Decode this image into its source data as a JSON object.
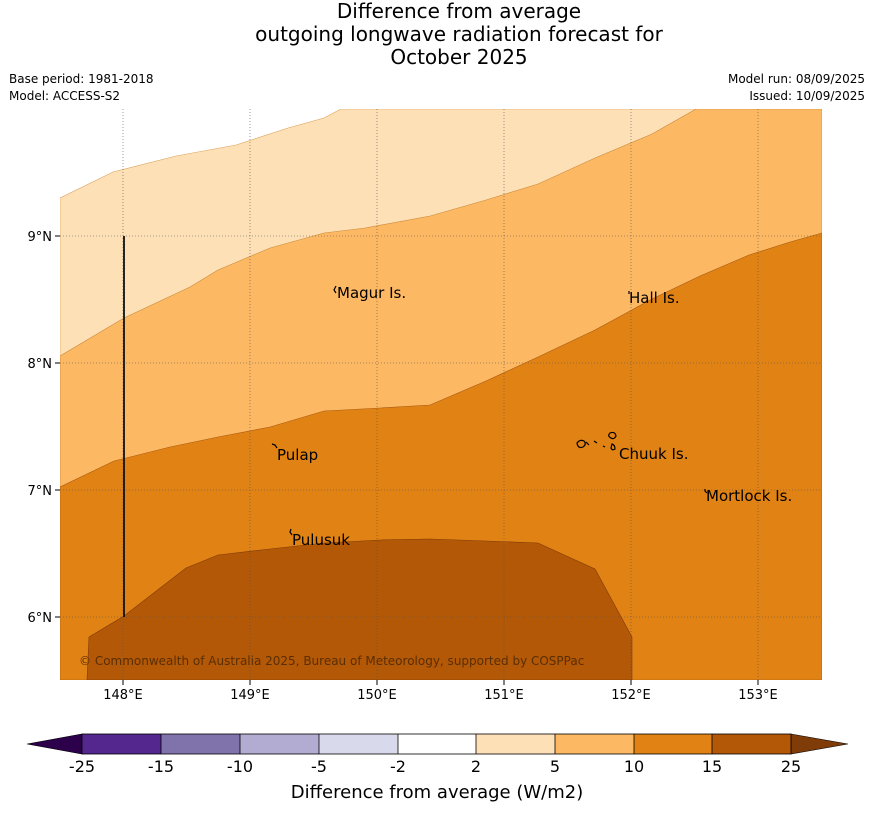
{
  "title": {
    "line1": "Difference from average",
    "line2": "outgoing longwave radiation forecast for",
    "line3": "October 2025"
  },
  "meta": {
    "base_period": "Base period: 1981-2018",
    "model": "Model: ACCESS-S2",
    "model_run": "Model run: 08/09/2025",
    "issued": "Issued: 10/09/2025"
  },
  "map": {
    "lon_range": [
      147.5,
      153.5
    ],
    "lat_range": [
      5.5,
      10.0
    ],
    "lon_ticks": [
      "148°E",
      "149°E",
      "150°E",
      "151°E",
      "152°E",
      "153°E"
    ],
    "lat_ticks": [
      "9°N",
      "8°N",
      "7°N",
      "6°N"
    ],
    "grid": true,
    "places": [
      {
        "name": "Magur Is.",
        "lon": 149.7,
        "lat": 8.57
      },
      {
        "name": "Hall Is.",
        "lon": 151.99,
        "lat": 8.53
      },
      {
        "name": "Pulap",
        "lon": 149.2,
        "lat": 7.28
      },
      {
        "name": "Chuuk Is.",
        "lon": 151.9,
        "lat": 7.28
      },
      {
        "name": "Mortlock Is.",
        "lon": 152.6,
        "lat": 6.95
      },
      {
        "name": "Pulusuk",
        "lon": 149.33,
        "lat": 6.61
      }
    ],
    "copyright": "© Commonwealth of Australia 2025, Bureau of Meteorology, supported by COSPPac"
  },
  "colorbar": {
    "ticks": [
      "-25",
      "-15",
      "-10",
      "-5",
      "-2",
      "2",
      "5",
      "10",
      "15",
      "25"
    ],
    "colors": [
      "#54278f",
      "#8073ac",
      "#b2abd2",
      "#d8daeb",
      "#ffffff",
      "#fee0b6",
      "#fdb863",
      "#e08214",
      "#b35806"
    ],
    "under_color": "#2d004b",
    "over_color": "#7f3b08",
    "label": "Difference from average (W/m2)"
  }
}
